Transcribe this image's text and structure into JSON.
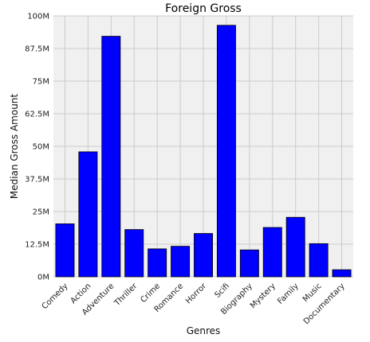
{
  "chart_data": {
    "type": "bar",
    "title": "Foreign Gross",
    "xlabel": "Genres",
    "ylabel": "Median Gross Amount",
    "categories": [
      "Comedy",
      "Action",
      "Adventure",
      "Thriller",
      "Crime",
      "Romance",
      "Horror",
      "Scifi",
      "Biography",
      "Mystery",
      "Family",
      "Music",
      "Documentary"
    ],
    "values": [
      20300000,
      47900000,
      92200000,
      18100000,
      10700000,
      11700000,
      16600000,
      96400000,
      10300000,
      18900000,
      22800000,
      12700000,
      2700000
    ],
    "ylim": [
      0,
      100000000
    ],
    "yticks": [
      0,
      12500000,
      25000000,
      37500000,
      50000000,
      62500000,
      75000000,
      87500000,
      100000000
    ],
    "ytick_labels": [
      "0M",
      "12.5M",
      "25M",
      "37.5M",
      "50M",
      "62.5M",
      "75M",
      "87.5M",
      "100M"
    ],
    "grid": true,
    "bar_color": "#0000ff",
    "background_color": "#f0f0f0",
    "grid_color": "#cbcbcb"
  }
}
